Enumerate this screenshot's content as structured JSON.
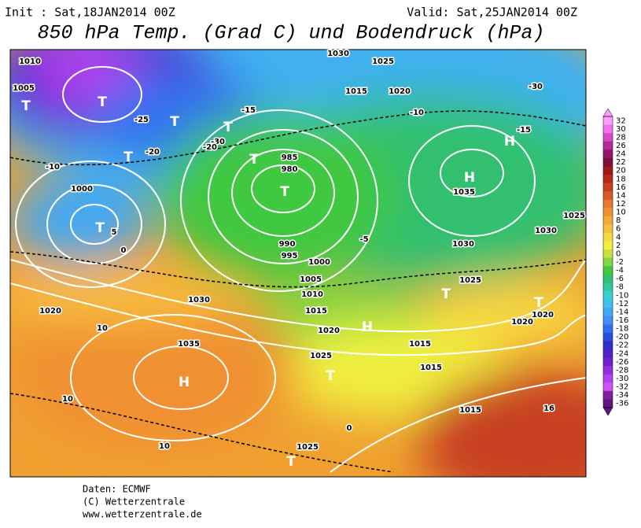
{
  "header": {
    "init": "Init : Sat,18JAN2014 00Z",
    "valid": "Valid: Sat,25JAN2014 00Z",
    "title": "850 hPa Temp. (Grad C) und Bodendruck (hPa)"
  },
  "map": {
    "labels": [
      "1010",
      "1005",
      "1000",
      "1030",
      "1025",
      "1020",
      "1015",
      "985",
      "980",
      "990",
      "995",
      "1000",
      "1005",
      "1010",
      "1015",
      "1020",
      "1025",
      "1030",
      "1035",
      "1020",
      "1015",
      "1015",
      "1035",
      "1030",
      "1025",
      "1025",
      "1025",
      "1030",
      "1015",
      "-25",
      "-20",
      "-30",
      "-10",
      "-15",
      "0",
      "10",
      "10",
      "16",
      "-5",
      "5",
      "0",
      "-10",
      "-15",
      "-20",
      "10",
      "-30",
      "1020",
      "1020"
    ],
    "markers": [
      "T",
      "T",
      "T",
      "T",
      "T",
      "T",
      "T",
      "H",
      "H",
      "H",
      "T",
      "T",
      "T",
      "T",
      "T",
      "H"
    ]
  },
  "colorbar": {
    "labels": [
      32,
      30,
      28,
      26,
      24,
      22,
      20,
      18,
      16,
      14,
      12,
      10,
      8,
      6,
      4,
      2,
      0,
      -2,
      -4,
      -6,
      -8,
      -10,
      -12,
      -14,
      -16,
      -18,
      -20,
      -22,
      -24,
      -26,
      -28,
      -30,
      -32,
      -34,
      -36
    ],
    "colors": [
      "#ff9cff",
      "#f070f0",
      "#d848c8",
      "#b82898",
      "#981468",
      "#801038",
      "#a01818",
      "#b82818",
      "#c84020",
      "#d85a28",
      "#e87830",
      "#f09030",
      "#f8a838",
      "#f8c040",
      "#f8d840",
      "#f0f040",
      "#c8e040",
      "#80d840",
      "#40c840",
      "#30c070",
      "#30c8a0",
      "#38d0d0",
      "#40c0f0",
      "#40a8f8",
      "#4090f8",
      "#3070f0",
      "#2850e0",
      "#3030d0",
      "#5020c8",
      "#7020d0",
      "#9030e0",
      "#b040f0",
      "#d050f8",
      "#8020a0",
      "#601880"
    ]
  },
  "footer": {
    "lines": [
      "Daten: ECMWF",
      "(C) Wetterzentrale",
      "www.wetterzentrale.de"
    ]
  }
}
